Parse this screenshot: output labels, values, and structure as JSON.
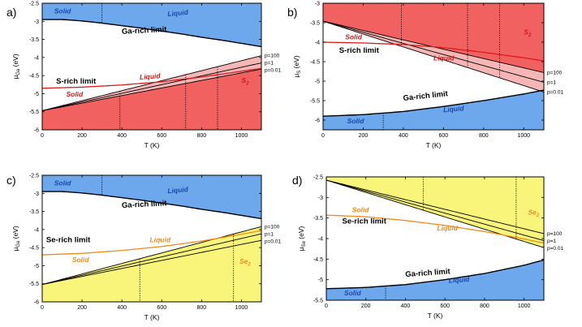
{
  "colors": {
    "blue": "#6ea8ec",
    "red": "#f0615f",
    "pink": "#f6b6b6",
    "yellow": "#f8f57a",
    "red_line": "#dd1b1b",
    "orange_line": "#f08a1a",
    "label_blue": "#1947a8",
    "label_red": "#d21717",
    "label_orange": "#f08a1a"
  },
  "chart_data": [
    {
      "type": "area",
      "panel_label": "a)",
      "xlabel": "T (K)",
      "ylabel_main": "μ",
      "ylabel_sub": "Ga",
      "ylabel_tail": " (eV)",
      "xlim": [
        0,
        1100
      ],
      "ylim": [
        -6,
        -2.5
      ],
      "xticks": [
        0,
        200,
        400,
        600,
        800,
        1000
      ],
      "yticks": [
        -6,
        -5.5,
        -5,
        -4.5,
        -4,
        -3.5,
        -3,
        -2.5
      ],
      "ytick_labels": [
        "-6",
        "-5.5",
        "-5",
        "-4.5",
        "-4",
        "-3.5",
        "-3",
        "-2.5"
      ],
      "top_region": "blue",
      "bottom_region": "red",
      "upper_curve": {
        "name": "Ga-rich limit",
        "points": [
          [
            0,
            -2.95
          ],
          [
            100,
            -2.95
          ],
          [
            200,
            -2.99
          ],
          [
            300,
            -3.05
          ],
          [
            400,
            -3.12
          ],
          [
            500,
            -3.19
          ],
          [
            600,
            -3.27
          ],
          [
            700,
            -3.35
          ],
          [
            800,
            -3.44
          ],
          [
            900,
            -3.52
          ],
          [
            1000,
            -3.61
          ],
          [
            1100,
            -3.7
          ]
        ]
      },
      "lower_curves": [
        {
          "name": "p=100",
          "points": [
            [
              0,
              -5.47
            ],
            [
              1100,
              -3.95
            ]
          ]
        },
        {
          "name": "p=1",
          "points": [
            [
              0,
              -5.47
            ],
            [
              1100,
              -4.15
            ]
          ]
        },
        {
          "name": "p=0.01",
          "points": [
            [
              0,
              -5.47
            ],
            [
              1100,
              -4.32
            ]
          ]
        }
      ],
      "band_fill": "pink",
      "liquid_curve": {
        "name": "liquid",
        "color": "red_line",
        "points": [
          [
            0,
            -4.85
          ],
          [
            200,
            -4.82
          ],
          [
            400,
            -4.76
          ],
          [
            600,
            -4.67
          ],
          [
            800,
            -4.54
          ],
          [
            1100,
            -4.3
          ]
        ]
      },
      "vlines": [
        {
          "x": 300,
          "from": "upper_curve"
        },
        {
          "x": 390,
          "from": "lower_curves"
        },
        {
          "x": 720,
          "from": "lower_curves"
        },
        {
          "x": 880,
          "from": "lower_curves"
        }
      ],
      "annotations": [
        {
          "text": "Solid",
          "x": 60,
          "y": -2.78,
          "color": "label_blue",
          "style": "annb",
          "rotate": 0
        },
        {
          "text": "Liquid",
          "x": 630,
          "y": -2.86,
          "color": "label_blue",
          "style": "annb",
          "rotate": -5
        },
        {
          "text": "Ga-rich limit",
          "x": 400,
          "y": -3.35,
          "color": "#000000",
          "style": "ann",
          "rotate": -3
        },
        {
          "text": "S-rich limit",
          "x": 70,
          "y": -4.72,
          "color": "#000000",
          "style": "ann",
          "rotate": 0
        },
        {
          "text": "Liquid",
          "x": 490,
          "y": -4.61,
          "color": "label_red",
          "style": "annb",
          "rotate": -4
        },
        {
          "text": "Solid",
          "x": 120,
          "y": -5.08,
          "color": "label_red",
          "style": "annb",
          "rotate": 0
        },
        {
          "text": "S",
          "sub": "2",
          "x": 1000,
          "y": -4.7,
          "color": "label_red",
          "style": "annb",
          "rotate": 0
        }
      ],
      "pressure_labels": [
        "p=100",
        "p=1",
        "p=0.01"
      ]
    },
    {
      "type": "area",
      "panel_label": "b)",
      "xlabel": "T (K)",
      "ylabel_main": "μ",
      "ylabel_sub": "S",
      "ylabel_tail": " (eV)",
      "xlim": [
        0,
        1100
      ],
      "ylim": [
        -6.25,
        -3
      ],
      "xticks": [
        0,
        200,
        400,
        600,
        800,
        1000
      ],
      "yticks": [
        -6,
        -5.5,
        -5,
        -4.5,
        -4,
        -3.5,
        -3
      ],
      "ytick_labels": [
        "-6",
        "-5.5",
        "-5",
        "-4.5",
        "-4",
        "-3.5",
        "-3"
      ],
      "top_region": "red",
      "bottom_region": "blue",
      "upper_curves": [
        {
          "name": "p=100",
          "points": [
            [
              0,
              -3.46
            ],
            [
              1100,
              -4.78
            ]
          ]
        },
        {
          "name": "p=1",
          "points": [
            [
              0,
              -3.46
            ],
            [
              1100,
              -5.03
            ]
          ]
        },
        {
          "name": "p=0.01",
          "points": [
            [
              0,
              -3.46
            ],
            [
              1100,
              -5.28
            ]
          ]
        }
      ],
      "band_fill": "pink",
      "lower_curve": {
        "name": "Ga-rich limit",
        "points": [
          [
            0,
            -5.9
          ],
          [
            200,
            -5.86
          ],
          [
            400,
            -5.78
          ],
          [
            600,
            -5.65
          ],
          [
            800,
            -5.5
          ],
          [
            1000,
            -5.33
          ],
          [
            1100,
            -5.23
          ]
        ]
      },
      "liquid_curve": {
        "name": "liquid",
        "color": "red_line",
        "points": [
          [
            0,
            -4.0
          ],
          [
            200,
            -4.02
          ],
          [
            400,
            -4.06
          ],
          [
            600,
            -4.14
          ],
          [
            800,
            -4.26
          ],
          [
            1000,
            -4.4
          ],
          [
            1100,
            -4.48
          ]
        ]
      },
      "vlines": [
        {
          "x": 300,
          "from": "lower_curve"
        },
        {
          "x": 390,
          "from": "upper_curves"
        },
        {
          "x": 720,
          "from": "upper_curves"
        },
        {
          "x": 880,
          "from": "upper_curves"
        }
      ],
      "annotations": [
        {
          "text": "Solid",
          "x": 110,
          "y": -3.93,
          "color": "label_red",
          "style": "annb",
          "rotate": 0
        },
        {
          "text": "S-rich limit",
          "x": 80,
          "y": -4.27,
          "color": "#000000",
          "style": "ann",
          "rotate": 0
        },
        {
          "text": "Liquid",
          "x": 550,
          "y": -4.47,
          "color": "label_red",
          "style": "annb",
          "rotate": 0
        },
        {
          "text": "S",
          "sub": "2",
          "x": 1000,
          "y": -3.8,
          "color": "label_red",
          "style": "annb",
          "rotate": 0
        },
        {
          "text": "Ga-rich limit",
          "x": 400,
          "y": -5.5,
          "color": "#000000",
          "style": "ann",
          "rotate": -6
        },
        {
          "text": "Solid",
          "x": 120,
          "y": -6.08,
          "color": "label_blue",
          "style": "annb",
          "rotate": 0
        },
        {
          "text": "Liquid",
          "x": 600,
          "y": -5.8,
          "color": "label_blue",
          "style": "annb",
          "rotate": -5
        }
      ],
      "pressure_labels": [
        "p=100",
        "p=1",
        "p=0.01"
      ]
    },
    {
      "type": "area",
      "panel_label": "c)",
      "xlabel": "T (K)",
      "ylabel_main": "μ",
      "ylabel_sub": "Ga",
      "ylabel_tail": " (eV)",
      "xlim": [
        0,
        1100
      ],
      "ylim": [
        -6,
        -2.5
      ],
      "xticks": [
        0,
        200,
        400,
        600,
        800,
        1000
      ],
      "yticks": [
        -6,
        -5.5,
        -5,
        -4.5,
        -4,
        -3.5,
        -3,
        -2.5
      ],
      "ytick_labels": [
        "-6",
        "-5.5",
        "-5",
        "-4.5",
        "-4",
        "-3.5",
        "-3",
        "-2.5"
      ],
      "top_region": "blue",
      "bottom_region": "yellow",
      "upper_curve": {
        "name": "Ga-rich limit",
        "points": [
          [
            0,
            -2.95
          ],
          [
            100,
            -2.95
          ],
          [
            200,
            -2.99
          ],
          [
            300,
            -3.05
          ],
          [
            400,
            -3.12
          ],
          [
            500,
            -3.19
          ],
          [
            600,
            -3.27
          ],
          [
            700,
            -3.35
          ],
          [
            800,
            -3.44
          ],
          [
            900,
            -3.52
          ],
          [
            1000,
            -3.61
          ],
          [
            1100,
            -3.7
          ]
        ]
      },
      "lower_curves": [
        {
          "name": "p=100",
          "points": [
            [
              0,
              -5.52
            ],
            [
              1100,
              -3.92
            ]
          ]
        },
        {
          "name": "p=1",
          "points": [
            [
              0,
              -5.52
            ],
            [
              1100,
              -4.12
            ]
          ]
        },
        {
          "name": "p=0.01",
          "points": [
            [
              0,
              -5.52
            ],
            [
              1100,
              -4.3
            ]
          ]
        }
      ],
      "band_fill": "yellow",
      "liquid_curve": {
        "name": "liquid",
        "color": "orange_line",
        "points": [
          [
            0,
            -4.7
          ],
          [
            200,
            -4.66
          ],
          [
            400,
            -4.58
          ],
          [
            600,
            -4.47
          ],
          [
            800,
            -4.32
          ],
          [
            1000,
            -4.13
          ],
          [
            1100,
            -4.03
          ]
        ]
      },
      "vlines": [
        {
          "x": 300,
          "from": "upper_curve"
        },
        {
          "x": 490,
          "from": "lower_curves"
        },
        {
          "x": 960,
          "from": "lower_curves"
        }
      ],
      "annotations": [
        {
          "text": "Solid",
          "x": 60,
          "y": -2.78,
          "color": "label_blue",
          "style": "annb",
          "rotate": 0
        },
        {
          "text": "Liquid",
          "x": 630,
          "y": -3.0,
          "color": "label_blue",
          "style": "annb",
          "rotate": -5
        },
        {
          "text": "Ga-rich limit",
          "x": 400,
          "y": -3.4,
          "color": "#000000",
          "style": "ann",
          "rotate": -3
        },
        {
          "text": "Se-rich limit",
          "x": 20,
          "y": -4.35,
          "color": "#000000",
          "style": "ann",
          "rotate": 0
        },
        {
          "text": "Liquid",
          "x": 540,
          "y": -4.35,
          "color": "label_orange",
          "style": "annb",
          "rotate": 0
        },
        {
          "text": "Solid",
          "x": 150,
          "y": -4.9,
          "color": "label_orange",
          "style": "annb",
          "rotate": 0
        },
        {
          "text": "Se",
          "sub": "2",
          "x": 990,
          "y": -4.95,
          "color": "label_orange",
          "style": "annb",
          "rotate": 0
        }
      ],
      "pressure_labels": [
        "p=100",
        "p=1",
        "p=0.01"
      ]
    },
    {
      "type": "area",
      "panel_label": "d)",
      "xlabel": "T (K)",
      "ylabel_main": "μ",
      "ylabel_sub": "Se",
      "ylabel_tail": " (eV)",
      "xlim": [
        0,
        1100
      ],
      "ylim": [
        -5.5,
        -2.5
      ],
      "xticks": [
        0,
        200,
        400,
        600,
        800,
        1000
      ],
      "yticks": [
        -5.5,
        -5,
        -4.5,
        -4,
        -3.5,
        -3,
        -2.5
      ],
      "ytick_labels": [
        "-5.5",
        "-5",
        "-4.5",
        "-4",
        "-3.5",
        "-3",
        "-2.5"
      ],
      "top_region": "yellow",
      "bottom_region": "blue",
      "upper_curves": [
        {
          "name": "p=100",
          "points": [
            [
              0,
              -2.58
            ],
            [
              1100,
              -3.88
            ]
          ]
        },
        {
          "name": "p=1",
          "points": [
            [
              0,
              -2.58
            ],
            [
              1100,
              -4.05
            ]
          ]
        },
        {
          "name": "p=0.01",
          "points": [
            [
              0,
              -2.58
            ],
            [
              1100,
              -4.22
            ]
          ]
        }
      ],
      "band_fill": "yellow",
      "lower_curve": {
        "name": "Ga-rich limit",
        "points": [
          [
            0,
            -5.22
          ],
          [
            200,
            -5.19
          ],
          [
            400,
            -5.12
          ],
          [
            600,
            -5.0
          ],
          [
            800,
            -4.85
          ],
          [
            1000,
            -4.65
          ],
          [
            1100,
            -4.52
          ]
        ]
      },
      "liquid_curve": {
        "name": "liquid",
        "color": "orange_line",
        "points": [
          [
            0,
            -3.43
          ],
          [
            200,
            -3.47
          ],
          [
            400,
            -3.56
          ],
          [
            600,
            -3.68
          ],
          [
            800,
            -3.83
          ],
          [
            1000,
            -4.01
          ],
          [
            1100,
            -4.11
          ]
        ]
      },
      "vlines": [
        {
          "x": 300,
          "from": "lower_curve"
        },
        {
          "x": 490,
          "from": "upper_curves"
        },
        {
          "x": 960,
          "from": "upper_curves"
        }
      ],
      "annotations": [
        {
          "text": "Solid",
          "x": 130,
          "y": -3.36,
          "color": "label_orange",
          "style": "annb",
          "rotate": 0
        },
        {
          "text": "Se-rich limit",
          "x": 80,
          "y": -3.63,
          "color": "#000000",
          "style": "ann",
          "rotate": 0
        },
        {
          "text": "Liquid",
          "x": 560,
          "y": -3.8,
          "color": "label_orange",
          "style": "annb",
          "rotate": 0
        },
        {
          "text": "Se",
          "sub": "2",
          "x": 1020,
          "y": -3.42,
          "color": "label_orange",
          "style": "annb",
          "rotate": 0
        },
        {
          "text": "Ga-rich limit",
          "x": 400,
          "y": -4.93,
          "color": "#000000",
          "style": "ann",
          "rotate": -4
        },
        {
          "text": "Solid",
          "x": 90,
          "y": -5.38,
          "color": "label_blue",
          "style": "annb",
          "rotate": 0
        },
        {
          "text": "Liquid",
          "x": 620,
          "y": -5.08,
          "color": "label_blue",
          "style": "annb",
          "rotate": -4
        }
      ],
      "pressure_labels": [
        "p=100",
        "p=1",
        "p=0.01"
      ]
    }
  ]
}
